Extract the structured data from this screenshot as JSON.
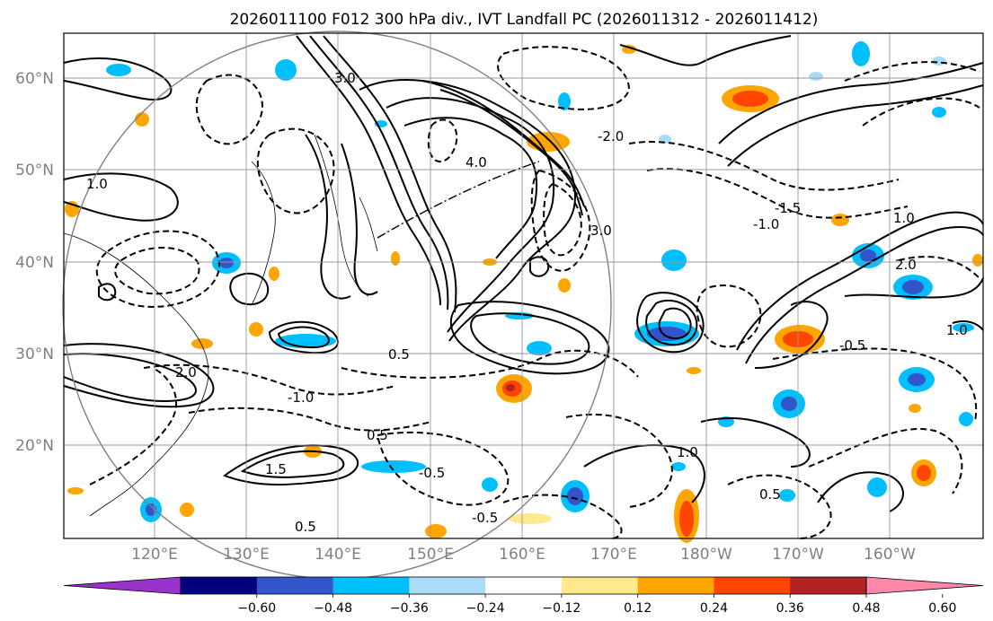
{
  "title": "2026011100 F012 300 hPa div., IVT Landfall PC (2026011312 - 2026011412)",
  "map": {
    "lon_ticks": [
      "120°E",
      "130°E",
      "140°E",
      "150°E",
      "160°E",
      "170°E",
      "180°W",
      "170°W",
      "160°W"
    ],
    "lat_ticks": [
      "60°N",
      "50°N",
      "40°N",
      "30°N",
      "20°N"
    ],
    "grid": true,
    "label_color": "#808080",
    "contour_labels": [
      "0.5",
      "1.0",
      "1.5",
      "2.0",
      "3.0",
      "4.0",
      "-0.5",
      "-1.0",
      "-1.5",
      "-2.0"
    ]
  },
  "colorbar": {
    "tick_labels": [
      "−0.60",
      "−0.48",
      "−0.36",
      "−0.24",
      "−0.12",
      "0.12",
      "0.24",
      "0.36",
      "0.48",
      "0.60"
    ],
    "colors": [
      "#9933cc",
      "#000080",
      "#3355cc",
      "#00bfff",
      "#aadcf8",
      "#ffffff",
      "#ffe98a",
      "#ffa500",
      "#ff4500",
      "#b22222",
      "#ff88aa"
    ]
  }
}
